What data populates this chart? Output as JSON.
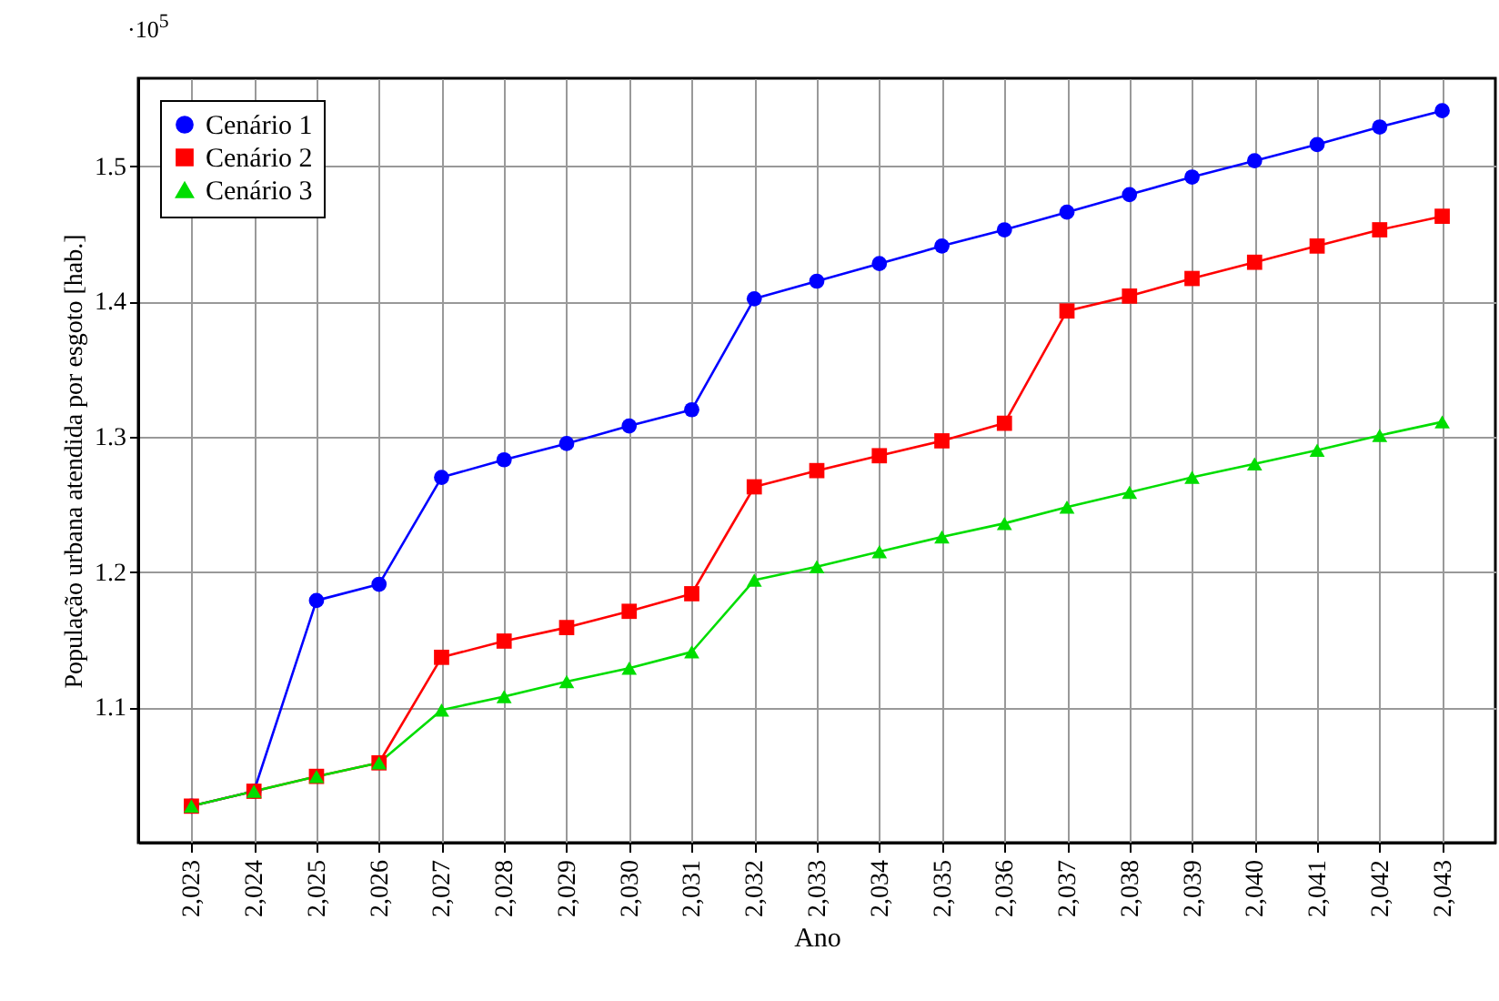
{
  "chart_data": {
    "type": "line",
    "xlabel": "Ano",
    "ylabel": "População urbana atendida por esgoto [hab.]",
    "annotations": [
      "·10$^{5}$"
    ],
    "categories": [
      "2,023",
      "2,024",
      "2,025",
      "2,026",
      "2,027",
      "2,028",
      "2,029",
      "2,030",
      "2,031",
      "2,032",
      "2,033",
      "2,034",
      "2,035",
      "2,036",
      "2,037",
      "2,038",
      "2,039",
      "2,040",
      "2,041",
      "2,042",
      "2,043"
    ],
    "series": [
      {
        "name": "Cenário 1",
        "color": "#0000ff",
        "marker": "circle",
        "values": [
          1.027,
          1.038,
          1.179,
          1.191,
          1.27,
          1.283,
          1.295,
          1.308,
          1.32,
          1.402,
          1.415,
          1.428,
          1.441,
          1.453,
          1.466,
          1.479,
          1.492,
          1.504,
          1.516,
          1.529,
          1.541
        ]
      },
      {
        "name": "Cenário 2",
        "color": "#ff0000",
        "marker": "square",
        "values": [
          1.027,
          1.038,
          1.049,
          1.059,
          1.137,
          1.149,
          1.159,
          1.171,
          1.184,
          1.263,
          1.275,
          1.286,
          1.297,
          1.31,
          1.393,
          1.404,
          1.417,
          1.429,
          1.441,
          1.453,
          1.463
        ]
      },
      {
        "name": "Cenário 3",
        "color": "#00dd00",
        "marker": "triangle",
        "values": [
          1.027,
          1.038,
          1.049,
          1.059,
          1.098,
          1.108,
          1.119,
          1.129,
          1.141,
          1.194,
          1.204,
          1.215,
          1.226,
          1.236,
          1.248,
          1.259,
          1.27,
          1.28,
          1.29,
          1.301,
          1.311
        ]
      }
    ],
    "ylim": [
      1.0,
      1.565
    ],
    "yticks": [
      1.1,
      1.2,
      1.3,
      1.4,
      1.5
    ],
    "grid": true,
    "legend": "top left",
    "line_style": "solid"
  }
}
